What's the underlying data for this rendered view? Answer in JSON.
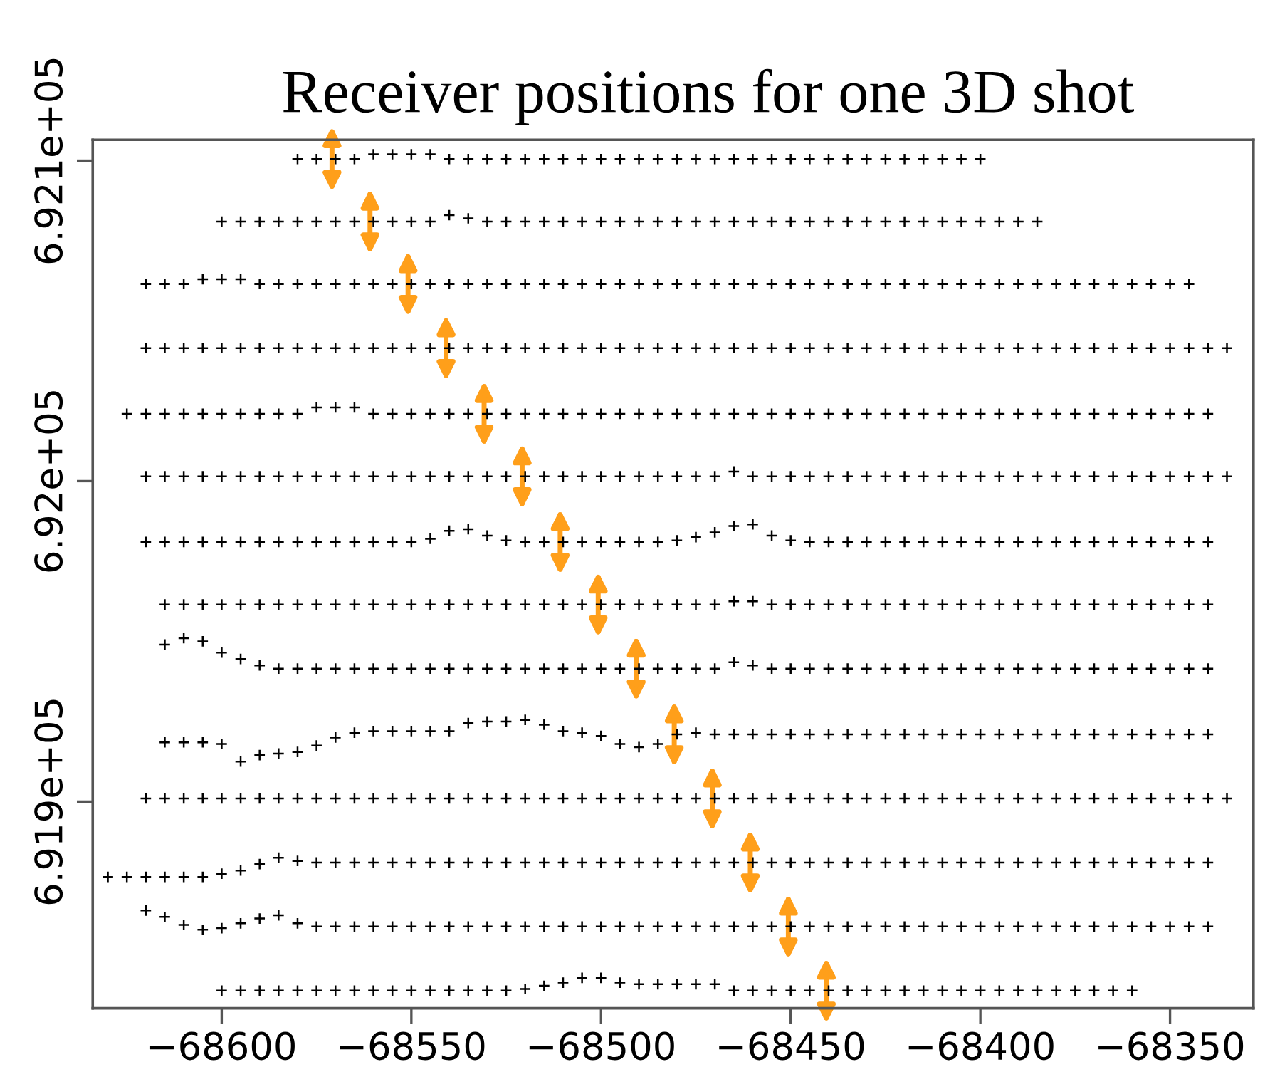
{
  "chart_data": {
    "type": "scatter",
    "title": "Receiver positions for one 3D shot",
    "marker": "cross",
    "xlim": [
      -68634,
      -68328
    ],
    "ylim": [
      691835.5,
      692106.5
    ],
    "xticks": [
      {
        "value": -68600,
        "label": "−68600"
      },
      {
        "value": -68550,
        "label": "−68550"
      },
      {
        "value": -68500,
        "label": "−68500"
      },
      {
        "value": -68450,
        "label": "−68450"
      },
      {
        "value": -68400,
        "label": "−68400"
      },
      {
        "value": -68350,
        "label": "−68350"
      }
    ],
    "yticks": [
      {
        "value": 691900,
        "label": "6.919e+05"
      },
      {
        "value": 692000,
        "label": "6.92e+05"
      },
      {
        "value": 692100,
        "label": "6.921e+05"
      }
    ],
    "x": [
      -68630,
      -68625,
      -68620,
      -68615,
      -68610,
      -68605,
      -68600,
      -68595,
      -68590,
      -68585,
      -68580,
      -68575,
      -68570,
      -68565,
      -68560,
      -68555,
      -68550,
      -68545,
      -68540,
      -68535,
      -68530,
      -68525,
      -68520,
      -68515,
      -68510,
      -68505,
      -68500,
      -68495,
      -68490,
      -68485,
      -68480,
      -68475,
      -68470,
      -68465,
      -68460,
      -68455,
      -68450,
      -68445,
      -68440,
      -68435,
      -68430,
      -68425,
      -68420,
      -68415,
      -68410,
      -68405,
      -68400,
      -68395,
      -68390,
      -68385,
      -68380,
      -68375,
      -68370,
      -68365,
      -68360,
      -68355,
      -68350,
      -68345,
      -68340,
      -68335
    ],
    "series": [
      {
        "color": "#000000",
        "values": [
          null,
          null,
          null,
          null,
          null,
          null,
          null,
          null,
          null,
          null,
          692100.5,
          692100.5,
          692100.5,
          692100.5,
          692102,
          692102,
          692102,
          692102,
          692100.5,
          692100.5,
          692100.5,
          692100.5,
          692100.5,
          692100.5,
          692100.5,
          692100.5,
          692100.5,
          692100.5,
          692100.5,
          692100.5,
          692100.5,
          692100.5,
          692100.5,
          692100.5,
          692100.5,
          692100.5,
          692100.5,
          692100.5,
          692100.5,
          692100.5,
          692100.5,
          692100.5,
          692100.5,
          692100.5,
          692100.5,
          692100.5,
          692100.5,
          null,
          null,
          null,
          null,
          null,
          null,
          null,
          null,
          null,
          null,
          null,
          null,
          null
        ]
      },
      {
        "color": "#000000",
        "values": [
          null,
          null,
          null,
          null,
          null,
          null,
          692081,
          692081,
          692081,
          692081,
          692081,
          692081,
          692081,
          692081,
          692081,
          692081,
          692081,
          692081,
          692083,
          692082,
          692081,
          692081,
          692081,
          692081,
          692081,
          692081,
          692081,
          692081,
          692081,
          692081,
          692081,
          692081,
          692081,
          692081,
          692081,
          692081,
          692081,
          692081,
          692081,
          692081,
          692081,
          692081,
          692081,
          692081,
          692081,
          692081,
          692081,
          692081,
          692081,
          692081,
          null,
          null,
          null,
          null,
          null,
          null,
          null,
          null,
          null,
          null
        ]
      },
      {
        "color": "#000000",
        "values": [
          null,
          null,
          692061.5,
          692061.5,
          692061.5,
          692063,
          692063,
          692063,
          692061.5,
          692061.5,
          692061.5,
          692061.5,
          692061.5,
          692061.5,
          692061.5,
          692061.5,
          692061.5,
          692061.5,
          692061.5,
          692061.5,
          692061.5,
          692061.5,
          692061.5,
          692061.5,
          692061.5,
          692061.5,
          692061.5,
          692061.5,
          692061.5,
          692061.5,
          692061.5,
          692061.5,
          692061.5,
          692061.5,
          692061.5,
          692061.5,
          692061.5,
          692061.5,
          692061.5,
          692061.5,
          692061.5,
          692061.5,
          692061.5,
          692061.5,
          692061.5,
          692061.5,
          692061.5,
          692061.5,
          692061.5,
          692061.5,
          692061.5,
          692061.5,
          692061.5,
          692061.5,
          692061.5,
          692061.5,
          692061.5,
          692061.5,
          null,
          null
        ]
      },
      {
        "color": "#000000",
        "values": [
          null,
          null,
          692041.5,
          692041.5,
          692041.5,
          692041.5,
          692041.5,
          692041.5,
          692041.5,
          692041.5,
          692041.5,
          692041.5,
          692041.5,
          692041.5,
          692041.5,
          692041.5,
          692041.5,
          692041.5,
          692041.5,
          692041.5,
          692041.5,
          692041.5,
          692041.5,
          692041.5,
          692041.5,
          692041.5,
          692041.5,
          692041.5,
          692041.5,
          692041.5,
          692041.5,
          692041.5,
          692041.5,
          692041.5,
          692041.5,
          692041.5,
          692041.5,
          692041.5,
          692041.5,
          692041.5,
          692041.5,
          692041.5,
          692041.5,
          692041.5,
          692041.5,
          692041.5,
          692041.5,
          692041.5,
          692041.5,
          692041.5,
          692041.5,
          692041.5,
          692041.5,
          692041.5,
          692041.5,
          692041.5,
          692041.5,
          692041.5,
          692041.5,
          692041.5
        ]
      },
      {
        "color": "#000000",
        "values": [
          null,
          692021,
          692021,
          692021,
          692021,
          692021,
          692021,
          692021,
          692021,
          692021,
          692021,
          692023,
          692023,
          692023,
          692021,
          692021,
          692021,
          692021,
          692021,
          692021,
          692021,
          692021,
          692021,
          692021,
          692021,
          692021,
          692021,
          692021,
          692021,
          692021,
          692021,
          692021,
          692021,
          692021,
          692021,
          692021,
          692021,
          692021,
          692021,
          692021,
          692021,
          692021,
          692021,
          692021,
          692021,
          692021,
          692021,
          692021,
          692021,
          692021,
          692021,
          692021,
          692021,
          692021,
          692021,
          692021,
          692021,
          692021,
          692021,
          null
        ]
      },
      {
        "color": "#000000",
        "values": [
          null,
          null,
          692001.5,
          692001.5,
          692001.5,
          692001.5,
          692001.5,
          692001.5,
          692001.5,
          692001.5,
          692001.5,
          692001.5,
          692001.5,
          692001.5,
          692001.5,
          692001.5,
          692001.5,
          692001.5,
          692001.5,
          692001.5,
          692001.5,
          692001.5,
          692001.5,
          692001.5,
          692001.5,
          692001.5,
          692001.5,
          692001.5,
          692001.5,
          692001.5,
          692001.5,
          692001.5,
          692001.5,
          692003,
          692001.5,
          692001.5,
          692001.5,
          692001.5,
          692001.5,
          692001.5,
          692001.5,
          692001.5,
          692001.5,
          692001.5,
          692001.5,
          692001.5,
          692001.5,
          692001.5,
          692001.5,
          692001.5,
          692001.5,
          692001.5,
          692001.5,
          692001.5,
          692001.5,
          692001.5,
          692001.5,
          692001.5,
          692001.5,
          692001.5
        ]
      },
      {
        "color": "#000000",
        "values": [
          null,
          null,
          691981,
          691981,
          691981,
          691981,
          691981,
          691981,
          691981,
          691981,
          691981,
          691981,
          691981,
          691981,
          691981,
          691981,
          691981,
          691982,
          691984.5,
          691985,
          691983,
          691981.5,
          691981,
          691981,
          691981,
          691981,
          691981,
          691981,
          691981,
          691981,
          691981.5,
          691982.5,
          691984,
          691986,
          691986.5,
          691983,
          691981.5,
          691981,
          691981,
          691981,
          691981,
          691981,
          691981,
          691981,
          691981,
          691981,
          691981,
          691981,
          691981,
          691981,
          691981,
          691981,
          691981,
          691981,
          691981,
          691981,
          691981,
          691981,
          691981,
          null
        ]
      },
      {
        "color": "#000000",
        "values": [
          null,
          null,
          null,
          691961.5,
          691961.5,
          691961.5,
          691961.5,
          691961.5,
          691961.5,
          691961.5,
          691961.5,
          691961.5,
          691961.5,
          691961.5,
          691961.5,
          691961.5,
          691961.5,
          691961.5,
          691961.5,
          691961.5,
          691961.5,
          691961.5,
          691961.5,
          691961.5,
          691961.5,
          691961.5,
          691961.5,
          691961.5,
          691961.5,
          691961.5,
          691961.5,
          691961.5,
          691961.5,
          691962.5,
          691962.5,
          691961.5,
          691961.5,
          691961.5,
          691961.5,
          691961.5,
          691961.5,
          691961.5,
          691961.5,
          691961.5,
          691961.5,
          691961.5,
          691961.5,
          691961.5,
          691961.5,
          691961.5,
          691961.5,
          691961.5,
          691961.5,
          691961.5,
          691961.5,
          691961.5,
          691961.5,
          691961.5,
          691961.5,
          null
        ]
      },
      {
        "color": "#000000",
        "values": [
          null,
          null,
          null,
          691949,
          691951,
          691950,
          691946.5,
          691944.5,
          691942.5,
          691941.5,
          691941.5,
          691941.5,
          691941.5,
          691941.5,
          691941.5,
          691941.5,
          691941.5,
          691941.5,
          691941.5,
          691941.5,
          691941.5,
          691941.5,
          691941.5,
          691941.5,
          691941.5,
          691941.5,
          691941.5,
          691941.5,
          691941.5,
          691941.5,
          691941.5,
          691941.5,
          691941.5,
          691943.5,
          691942.5,
          691941.5,
          691941.5,
          691941.5,
          691941.5,
          691941.5,
          691941.5,
          691941.5,
          691941.5,
          691941.5,
          691941.5,
          691941.5,
          691941.5,
          691941.5,
          691941.5,
          691941.5,
          691941.5,
          691941.5,
          691941.5,
          691941.5,
          691941.5,
          691941.5,
          691941.5,
          691941.5,
          691941.5,
          null
        ]
      },
      {
        "color": "#000000",
        "values": [
          null,
          null,
          null,
          691918.5,
          691918.5,
          691918.5,
          691918,
          691912.5,
          691914.5,
          691915,
          691915.5,
          691917.5,
          691920,
          691921.5,
          691922,
          691922,
          691922,
          691922,
          691922,
          691924.5,
          691925,
          691925,
          691925.5,
          691924,
          691922,
          691921.5,
          691920.5,
          691918,
          691917,
          691918,
          691921,
          691921.5,
          691921,
          691921,
          691921,
          691921,
          691921,
          691921,
          691921,
          691921,
          691921,
          691921,
          691921,
          691921,
          691921,
          691921,
          691921,
          691921,
          691921,
          691921,
          691921,
          691921,
          691921,
          691921,
          691921,
          691921,
          691921,
          691921,
          691921,
          null
        ]
      },
      {
        "color": "#000000",
        "values": [
          null,
          null,
          691901,
          691901,
          691901,
          691901,
          691901,
          691901,
          691901,
          691901,
          691901,
          691901,
          691901,
          691901,
          691901,
          691901,
          691901,
          691901,
          691901,
          691901,
          691901,
          691901,
          691901,
          691901,
          691901,
          691901,
          691901,
          691901,
          691901,
          691901,
          691901,
          691901,
          691901,
          691901,
          691901,
          691901,
          691901,
          691901,
          691901,
          691901,
          691901,
          691901,
          691901,
          691901,
          691901,
          691901,
          691901,
          691901,
          691901,
          691901,
          691901,
          691901,
          691901,
          691901,
          691901,
          691901,
          691901,
          691901,
          691901,
          691901
        ]
      },
      {
        "color": "#000000",
        "values": [
          691876.5,
          691876.5,
          691876.5,
          691876.5,
          691876.5,
          691876.5,
          691877.5,
          691878.5,
          691880.5,
          691882.5,
          691881.5,
          691881,
          691881,
          691881,
          691881,
          691881,
          691881,
          691881,
          691881,
          691881,
          691881,
          691881,
          691881,
          691881,
          691881,
          691881,
          691881,
          691881,
          691881,
          691881,
          691881,
          691881,
          691881,
          691881,
          691881,
          691881,
          691881,
          691881,
          691881,
          691881,
          691881,
          691881,
          691881,
          691881,
          691881,
          691881,
          691881,
          691881,
          691881,
          691881,
          691881,
          691881,
          691881,
          691881,
          691881,
          691881,
          691881,
          691881,
          691881,
          null
        ]
      },
      {
        "color": "#000000",
        "values": [
          null,
          null,
          691866,
          691864,
          691861.5,
          691860,
          691860.5,
          691862,
          691863.5,
          691864.5,
          691862,
          691861,
          691861,
          691861,
          691861,
          691861,
          691861,
          691861,
          691861,
          691861,
          691861,
          691861,
          691861,
          691861,
          691861,
          691861,
          691861,
          691861,
          691861,
          691861,
          691861,
          691861,
          691861,
          691861,
          691861,
          691861,
          691861,
          691861,
          691861,
          691861,
          691861,
          691861,
          691861,
          691861,
          691861,
          691861,
          691861,
          691861,
          691861,
          691861,
          691861,
          691861,
          691861,
          691861,
          691861,
          691861,
          691861,
          691861,
          691861,
          null
        ]
      },
      {
        "color": "#000000",
        "values": [
          null,
          null,
          null,
          null,
          null,
          null,
          691841,
          691841,
          691841,
          691841,
          691841,
          691841,
          691841,
          691841,
          691841,
          691841,
          691841,
          691841,
          691841,
          691841,
          691841,
          691841,
          691841.5,
          691842.5,
          691843.5,
          691845,
          691845,
          691843.5,
          691843,
          691843,
          691843,
          691843,
          691843,
          691841,
          691841,
          691841,
          691841,
          691841,
          691841,
          691841,
          691841,
          691841,
          691841,
          691841,
          691841,
          691841,
          691841,
          691841,
          691841,
          691841,
          691841,
          691841,
          691841,
          691841,
          691841,
          null,
          null,
          null,
          null,
          null
        ]
      }
    ]
  }
}
